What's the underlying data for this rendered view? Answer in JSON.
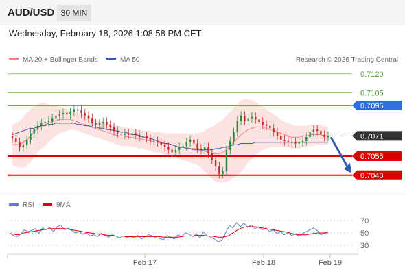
{
  "header": {
    "symbol": "AUD/USD",
    "timeframe": "30 MIN"
  },
  "timestamp": "Wednesday, February 18, 2026 1:08:58 PM CET",
  "legend": {
    "ma20_bb": "MA 20 + Bollinger Bands",
    "ma50": "MA 50",
    "copyright": "Research © 2026 Trading Central",
    "rsi": "RSI",
    "rsi_ma": "9MA"
  },
  "colors": {
    "ma20": "#f08080",
    "bollinger_fill": "#fde2e2",
    "ma50": "#3a56b0",
    "bull": "#2a8a3a",
    "bear": "#c62828",
    "support": "#dd0000",
    "resistance": "#2f6fe0",
    "target": "#8cc76a",
    "last_price": "#333333",
    "arrow": "#2f5fa8",
    "rsi": "#5b7fd6",
    "rsi_ma": "#dd0000"
  },
  "chart_data": [
    {
      "type": "candlestick",
      "title": "AUD/USD 30 MIN",
      "x_ticks": [
        "Feb 17",
        "Feb 18",
        "Feb 19"
      ],
      "ylim": [
        7.0025,
        7.0132
      ],
      "levels": [
        {
          "value": 0.712,
          "label": "0.7120",
          "kind": "target"
        },
        {
          "value": 0.7105,
          "label": "0.7105",
          "kind": "target"
        },
        {
          "value": 0.7095,
          "label": "0.7095",
          "kind": "resistance"
        },
        {
          "value": 0.7071,
          "label": "0.7071",
          "kind": "last_price"
        },
        {
          "value": 0.7055,
          "label": "0.7055",
          "kind": "support"
        },
        {
          "value": 0.704,
          "label": "0.7040",
          "kind": "support"
        }
      ],
      "arrow": {
        "from": 0.7071,
        "to": 0.704,
        "direction": "down"
      },
      "close": [
        0.7069,
        0.7066,
        0.7062,
        0.7064,
        0.7068,
        0.7073,
        0.7076,
        0.7079,
        0.7081,
        0.7082,
        0.7083,
        0.7085,
        0.7087,
        0.7088,
        0.7089,
        0.7088,
        0.709,
        0.7092,
        0.7091,
        0.7089,
        0.7087,
        0.7085,
        0.7081,
        0.708,
        0.7081,
        0.7082,
        0.708,
        0.7078,
        0.7075,
        0.7073,
        0.7072,
        0.7073,
        0.7072,
        0.7073,
        0.7072,
        0.707,
        0.7071,
        0.7069,
        0.7067,
        0.7067,
        0.7066,
        0.7064,
        0.7062,
        0.706,
        0.7058,
        0.706,
        0.7062,
        0.7063,
        0.7066,
        0.7068,
        0.7065,
        0.7061,
        0.706,
        0.7062,
        0.7057,
        0.7052,
        0.7047,
        0.7041,
        0.7043,
        0.706,
        0.7067,
        0.7074,
        0.7083,
        0.7087,
        0.7083,
        0.7085,
        0.7086,
        0.7084,
        0.7082,
        0.708,
        0.7079,
        0.7077,
        0.7074,
        0.7071,
        0.7068,
        0.7067,
        0.7066,
        0.7066,
        0.7065,
        0.7066,
        0.7067,
        0.707,
        0.7074,
        0.7076,
        0.7075,
        0.7072,
        0.707,
        0.7071
      ],
      "ma20": [
        0.7064,
        0.7064,
        0.7064,
        0.7066,
        0.7068,
        0.7071,
        0.7074,
        0.7077,
        0.7079,
        0.708,
        0.7081,
        0.7082,
        0.7083,
        0.7084,
        0.7084,
        0.7084,
        0.7084,
        0.7083,
        0.7082,
        0.7081,
        0.708,
        0.7079,
        0.7078,
        0.7077,
        0.7076,
        0.7075,
        0.7074,
        0.7073,
        0.7072,
        0.7071,
        0.7071,
        0.7071,
        0.707,
        0.707,
        0.7069,
        0.7069,
        0.7068,
        0.7068,
        0.7067,
        0.7066,
        0.7066,
        0.7065,
        0.7065,
        0.7064,
        0.7064,
        0.7063,
        0.7062,
        0.7062,
        0.7062,
        0.7061,
        0.7061,
        0.7061,
        0.706,
        0.7059,
        0.7058,
        0.7057,
        0.7057,
        0.7057,
        0.7058,
        0.706,
        0.7063,
        0.7066,
        0.7069,
        0.7072,
        0.7074,
        0.7076,
        0.7077,
        0.7078,
        0.7078,
        0.7078,
        0.7077,
        0.7076,
        0.7075,
        0.7074,
        0.7073,
        0.7072,
        0.7071,
        0.707,
        0.707,
        0.707,
        0.7071,
        0.7071,
        0.7072,
        0.7072,
        0.7072,
        0.7072,
        0.7071,
        0.7071
      ],
      "bb_upper": [
        0.708,
        0.7081,
        0.7083,
        0.7086,
        0.7089,
        0.7092,
        0.7094,
        0.7096,
        0.7097,
        0.7097,
        0.7096,
        0.7095,
        0.7095,
        0.7094,
        0.7093,
        0.7092,
        0.7091,
        0.709,
        0.7089,
        0.7088,
        0.7087,
        0.7086,
        0.7085,
        0.7084,
        0.7083,
        0.7082,
        0.7081,
        0.708,
        0.708,
        0.7079,
        0.7078,
        0.7078,
        0.7077,
        0.7077,
        0.7076,
        0.7076,
        0.7075,
        0.7075,
        0.7075,
        0.7074,
        0.7074,
        0.7074,
        0.7073,
        0.7073,
        0.7073,
        0.7073,
        0.7073,
        0.7073,
        0.7073,
        0.7073,
        0.7073,
        0.7073,
        0.7074,
        0.7075,
        0.7077,
        0.7078,
        0.708,
        0.7082,
        0.7084,
        0.7087,
        0.709,
        0.7093,
        0.7096,
        0.7099,
        0.71,
        0.71,
        0.7099,
        0.7098,
        0.7096,
        0.7094,
        0.7092,
        0.709,
        0.7088,
        0.7086,
        0.7084,
        0.7082,
        0.7081,
        0.708,
        0.7079,
        0.7079,
        0.7079,
        0.7079,
        0.708,
        0.708,
        0.708,
        0.708,
        0.7079,
        0.7078
      ],
      "bb_lower": [
        0.7048,
        0.7047,
        0.7046,
        0.7046,
        0.7047,
        0.705,
        0.7054,
        0.7058,
        0.7061,
        0.7063,
        0.7066,
        0.7069,
        0.7071,
        0.7073,
        0.7074,
        0.7075,
        0.7076,
        0.7076,
        0.7075,
        0.7074,
        0.7073,
        0.7072,
        0.7071,
        0.707,
        0.7069,
        0.7068,
        0.7067,
        0.7066,
        0.7065,
        0.7064,
        0.7063,
        0.7063,
        0.7063,
        0.7062,
        0.7062,
        0.7061,
        0.7061,
        0.706,
        0.7059,
        0.7058,
        0.7058,
        0.7057,
        0.7056,
        0.7055,
        0.7055,
        0.7054,
        0.7053,
        0.7052,
        0.7051,
        0.705,
        0.7049,
        0.7048,
        0.7046,
        0.7043,
        0.704,
        0.7037,
        0.7035,
        0.7034,
        0.7034,
        0.7035,
        0.7036,
        0.7038,
        0.704,
        0.7043,
        0.7046,
        0.705,
        0.7053,
        0.7056,
        0.7058,
        0.706,
        0.7061,
        0.7062,
        0.7062,
        0.7062,
        0.7062,
        0.7062,
        0.7062,
        0.7061,
        0.7061,
        0.7061,
        0.7062,
        0.7062,
        0.7063,
        0.7063,
        0.7064,
        0.7064,
        0.7064,
        0.7064
      ],
      "ma50": [
        0.7072,
        0.7073,
        0.7074,
        0.7075,
        0.7076,
        0.7077,
        0.7077,
        0.7078,
        0.7079,
        0.7079,
        0.708,
        0.708,
        0.7081,
        0.7081,
        0.7081,
        0.7081,
        0.7081,
        0.7081,
        0.708,
        0.708,
        0.7079,
        0.7079,
        0.7078,
        0.7078,
        0.7077,
        0.7077,
        0.7076,
        0.7076,
        0.7075,
        0.7075,
        0.7074,
        0.7074,
        0.7073,
        0.7072,
        0.7072,
        0.7071,
        0.707,
        0.707,
        0.7069,
        0.7068,
        0.7067,
        0.7066,
        0.7065,
        0.7065,
        0.7064,
        0.7063,
        0.7062,
        0.7062,
        0.7061,
        0.7061,
        0.706,
        0.706,
        0.706,
        0.706,
        0.706,
        0.706,
        0.7061,
        0.7061,
        0.7062,
        0.7062,
        0.7063,
        0.7064,
        0.7064,
        0.7065,
        0.7065,
        0.7065,
        0.7065,
        0.7066,
        0.7066,
        0.7066,
        0.7066,
        0.7066,
        0.7066,
        0.7066,
        0.7066,
        0.7066,
        0.7066,
        0.7066,
        0.7066,
        0.7066,
        0.7066,
        0.7066,
        0.7066,
        0.7066,
        0.7066,
        0.7066,
        0.7066,
        0.7066
      ]
    },
    {
      "type": "line",
      "title": "RSI",
      "ylim": [
        20,
        80
      ],
      "y_ticks": [
        70,
        50,
        30
      ],
      "series": [
        {
          "name": "RSI",
          "values": [
            50,
            46,
            44,
            48,
            55,
            52,
            54,
            57,
            49,
            58,
            55,
            59,
            52,
            60,
            63,
            55,
            58,
            54,
            50,
            52,
            48,
            50,
            45,
            47,
            44,
            49,
            46,
            43,
            47,
            45,
            42,
            45,
            43,
            44,
            42,
            46,
            40,
            44,
            47,
            45,
            42,
            41,
            39,
            46,
            43,
            40,
            47,
            44,
            50,
            48,
            44,
            48,
            42,
            52,
            45,
            43,
            40,
            35,
            38,
            50,
            62,
            58,
            67,
            60,
            66,
            59,
            63,
            57,
            60,
            55,
            58,
            52,
            55,
            49,
            52,
            47,
            50,
            46,
            48,
            45,
            49,
            52,
            55,
            58,
            54,
            47,
            50,
            52
          ]
        },
        {
          "name": "9MA",
          "values": [
            49,
            48,
            47,
            48,
            50,
            51,
            52,
            53,
            54,
            55,
            56,
            57,
            57,
            57,
            57,
            57,
            56,
            55,
            54,
            53,
            52,
            51,
            50,
            49,
            48,
            48,
            47,
            46,
            46,
            45,
            45,
            45,
            44,
            44,
            44,
            44,
            44,
            44,
            44,
            44,
            44,
            44,
            43,
            43,
            43,
            43,
            43,
            44,
            45,
            45,
            45,
            46,
            46,
            46,
            45,
            45,
            44,
            43,
            43,
            44,
            46,
            50,
            54,
            57,
            59,
            60,
            60,
            60,
            59,
            58,
            57,
            56,
            55,
            54,
            53,
            52,
            51,
            49,
            48,
            47,
            47,
            47,
            48,
            49,
            50,
            50,
            50,
            50
          ]
        }
      ]
    }
  ]
}
